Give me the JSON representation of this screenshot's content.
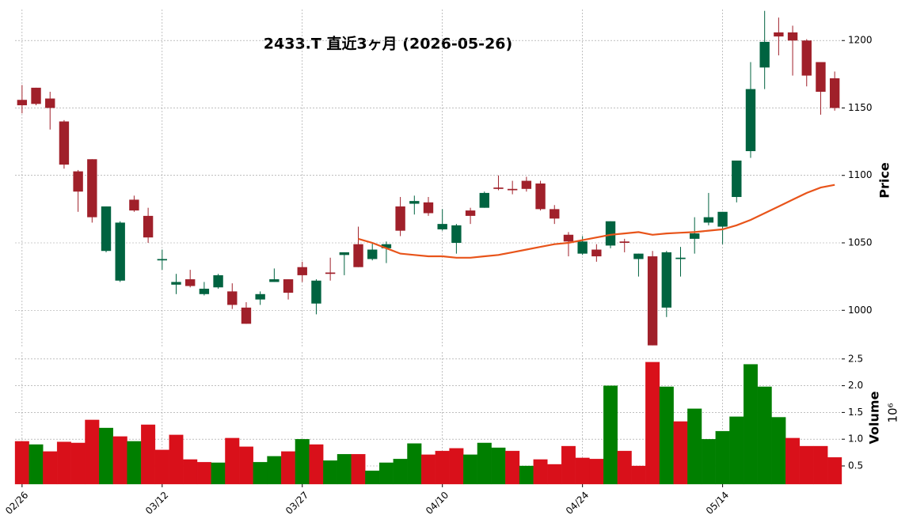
{
  "chart_data": {
    "type": "candlestick",
    "title": "2433.T  直近3ヶ月  (2026-05-26)",
    "ylabel": "Price",
    "grid": true,
    "up_color": "#006340",
    "down_color": "#a0202a",
    "categories": [
      "02/26",
      null,
      null,
      null,
      null,
      null,
      null,
      null,
      null,
      null,
      "03/12",
      null,
      null,
      null,
      null,
      null,
      null,
      null,
      null,
      null,
      "03/27",
      null,
      null,
      null,
      null,
      null,
      null,
      null,
      null,
      null,
      "04/10",
      null,
      null,
      null,
      null,
      null,
      null,
      null,
      null,
      null,
      "04/24",
      null,
      null,
      null,
      null,
      null,
      null,
      null,
      null,
      null,
      "05/14",
      null,
      null,
      null,
      null,
      null,
      null,
      null,
      null
    ],
    "open": [
      1156,
      1165,
      1157,
      1140,
      1103,
      1112,
      1044,
      1022,
      1082,
      1070,
      1037,
      1019,
      1023,
      1012,
      1017,
      1014,
      1002,
      1008,
      1021,
      1023,
      1032,
      1005,
      1028,
      1041,
      1049,
      1038,
      1046,
      1077,
      1079,
      1080,
      1060,
      1050,
      1074,
      1076,
      1091,
      1090,
      1096,
      1094,
      1075,
      1056,
      1042,
      1045,
      1048,
      1051,
      1038,
      1040,
      1002,
      1038,
      1053,
      1065,
      1062,
      1084,
      1118,
      1180,
      1206,
      1206,
      1200,
      1184,
      1172
    ],
    "high": [
      1167,
      1165,
      1162,
      1141,
      1104,
      1112,
      1077,
      1066,
      1085,
      1076,
      1045,
      1027,
      1030,
      1021,
      1027,
      1020,
      1006,
      1014,
      1031,
      1023,
      1036,
      1023,
      1039,
      1043,
      1062,
      1050,
      1051,
      1084,
      1085,
      1084,
      1075,
      1064,
      1076,
      1088,
      1100,
      1096,
      1099,
      1096,
      1078,
      1058,
      1055,
      1049,
      1066,
      1053,
      1042,
      1044,
      1044,
      1047,
      1069,
      1087,
      1073,
      1111,
      1184,
      1222,
      1217,
      1211,
      1201,
      1184,
      1177
    ],
    "low": [
      1146,
      1152,
      1134,
      1105,
      1073,
      1065,
      1043,
      1021,
      1073,
      1050,
      1030,
      1012,
      1017,
      1011,
      1016,
      1001,
      990,
      1004,
      1021,
      1008,
      1021,
      997,
      1022,
      1026,
      1032,
      1037,
      1035,
      1055,
      1071,
      1070,
      1059,
      1042,
      1064,
      1076,
      1089,
      1086,
      1088,
      1074,
      1064,
      1040,
      1041,
      1036,
      1046,
      1043,
      1025,
      974,
      995,
      1025,
      1042,
      1063,
      1049,
      1080,
      1113,
      1164,
      1189,
      1174,
      1166,
      1145,
      1148
    ],
    "close": [
      1152,
      1153,
      1150,
      1108,
      1088,
      1069,
      1077,
      1065,
      1074,
      1054,
      1038,
      1021,
      1018,
      1016,
      1026,
      1004,
      990,
      1012,
      1023,
      1013,
      1026,
      1022,
      1027,
      1043,
      1032,
      1045,
      1049,
      1059,
      1081,
      1072,
      1064,
      1063,
      1070,
      1087,
      1090,
      1089,
      1090,
      1075,
      1068,
      1051,
      1051,
      1040,
      1066,
      1050,
      1042,
      974,
      1043,
      1039,
      1057,
      1069,
      1073,
      1111,
      1164,
      1199,
      1203,
      1200,
      1174,
      1162,
      1150
    ],
    "ylim": [
      972,
      1223
    ],
    "yticks": [
      1000,
      1050,
      1100,
      1150,
      1200
    ],
    "moving_average": {
      "color": "#e8541a",
      "values": [
        null,
        null,
        null,
        null,
        null,
        null,
        null,
        null,
        null,
        null,
        null,
        null,
        null,
        null,
        null,
        null,
        null,
        null,
        null,
        null,
        null,
        null,
        null,
        null,
        1053,
        1050,
        1046,
        1042,
        1041,
        1040,
        1040,
        1039,
        1039,
        1040,
        1041,
        1043,
        1045,
        1047,
        1049,
        1050,
        1052,
        1054,
        1056,
        1057,
        1058,
        1056,
        1057,
        1057.5,
        1058,
        1059,
        1060,
        1063,
        1067,
        1072,
        1077,
        1082,
        1087,
        1091,
        1093
      ]
    },
    "volume": {
      "ylabel": "Volume",
      "scale_label": "10⁶",
      "ylim": [
        0.16,
        2.63
      ],
      "yticks": [
        0.5,
        {
          "value": 1,
          "label": "1.0"
        },
        1.5,
        {
          "value": 2,
          "label": "2.0"
        },
        2.5
      ],
      "values": [
        0.96,
        0.9,
        0.77,
        0.95,
        0.93,
        1.36,
        1.21,
        1.05,
        0.96,
        1.27,
        0.8,
        1.08,
        0.62,
        0.57,
        0.56,
        1.02,
        0.86,
        0.57,
        0.68,
        0.77,
        1.0,
        0.9,
        0.6,
        0.72,
        0.72,
        0.41,
        0.56,
        0.63,
        0.92,
        0.71,
        0.78,
        0.83,
        0.71,
        0.93,
        0.84,
        0.78,
        0.5,
        0.62,
        0.53,
        0.87,
        0.65,
        0.63,
        2.0,
        0.78,
        0.5,
        2.44,
        1.98,
        1.33,
        1.57,
        1.0,
        1.15,
        1.42,
        2.4,
        1.98,
        1.41,
        1.02,
        0.87,
        0.87,
        0.66
      ],
      "colors": [
        "#d9101a",
        "#007f00",
        "#d9101a",
        "#d9101a",
        "#d9101a",
        "#d9101a",
        "#007f00",
        "#d9101a",
        "#007f00",
        "#d9101a",
        "#d9101a",
        "#d9101a",
        "#d9101a",
        "#d9101a",
        "#007f00",
        "#d9101a",
        "#d9101a",
        "#007f00",
        "#007f00",
        "#d9101a",
        "#007f00",
        "#d9101a",
        "#007f00",
        "#007f00",
        "#d9101a",
        "#007f00",
        "#007f00",
        "#007f00",
        "#007f00",
        "#d9101a",
        "#d9101a",
        "#d9101a",
        "#007f00",
        "#007f00",
        "#007f00",
        "#d9101a",
        "#007f00",
        "#d9101a",
        "#d9101a",
        "#d9101a",
        "#d9101a",
        "#d9101a",
        "#007f00",
        "#d9101a",
        "#d9101a",
        "#d9101a",
        "#007f00",
        "#d9101a",
        "#007f00",
        "#007f00",
        "#007f00",
        "#007f00",
        "#007f00",
        "#007f00",
        "#007f00",
        "#d9101a",
        "#d9101a",
        "#d9101a",
        "#d9101a"
      ]
    }
  }
}
